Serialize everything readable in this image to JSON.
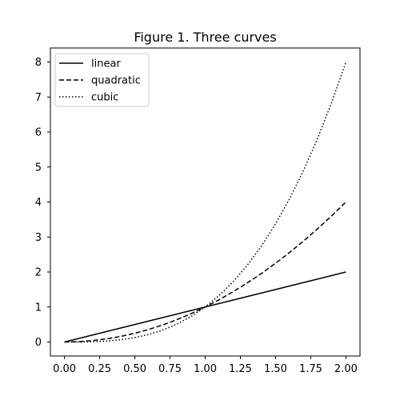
{
  "chart_data": {
    "type": "line",
    "title": "Figure 1. Three curves",
    "xlabel": "",
    "ylabel": "",
    "xlim": [
      -0.1,
      2.1
    ],
    "ylim": [
      -0.4,
      8.4
    ],
    "xticks": [
      0.0,
      0.25,
      0.5,
      0.75,
      1.0,
      1.25,
      1.5,
      1.75,
      2.0
    ],
    "xtick_labels": [
      "0.00",
      "0.25",
      "0.50",
      "0.75",
      "1.00",
      "1.25",
      "1.50",
      "1.75",
      "2.00"
    ],
    "yticks": [
      0,
      1,
      2,
      3,
      4,
      5,
      6,
      7,
      8
    ],
    "ytick_labels": [
      "0",
      "1",
      "2",
      "3",
      "4",
      "5",
      "6",
      "7",
      "8"
    ],
    "grid": false,
    "legend_position": "top-left",
    "x": [
      0.0,
      0.1,
      0.2,
      0.3,
      0.4,
      0.5,
      0.6,
      0.7,
      0.8,
      0.9,
      1.0,
      1.1,
      1.2,
      1.3,
      1.4,
      1.5,
      1.6,
      1.7,
      1.8,
      1.9,
      2.0
    ],
    "series": [
      {
        "name": "linear",
        "line_style": "solid",
        "color": "#000000",
        "values": [
          0.0,
          0.1,
          0.2,
          0.3,
          0.4,
          0.5,
          0.6,
          0.7,
          0.8,
          0.9,
          1.0,
          1.1,
          1.2,
          1.3,
          1.4,
          1.5,
          1.6,
          1.7,
          1.8,
          1.9,
          2.0
        ]
      },
      {
        "name": "quadratic",
        "line_style": "dashed",
        "color": "#000000",
        "values": [
          0.0,
          0.01,
          0.04,
          0.09,
          0.16,
          0.25,
          0.36,
          0.49,
          0.64,
          0.81,
          1.0,
          1.21,
          1.44,
          1.69,
          1.96,
          2.25,
          2.56,
          2.89,
          3.24,
          3.61,
          4.0
        ]
      },
      {
        "name": "cubic",
        "line_style": "dotted",
        "color": "#000000",
        "values": [
          0.0,
          0.001,
          0.008,
          0.027,
          0.064,
          0.125,
          0.216,
          0.343,
          0.512,
          0.729,
          1.0,
          1.331,
          1.728,
          2.197,
          2.744,
          3.375,
          4.096,
          4.913,
          5.832,
          6.859,
          8.0
        ]
      }
    ]
  }
}
